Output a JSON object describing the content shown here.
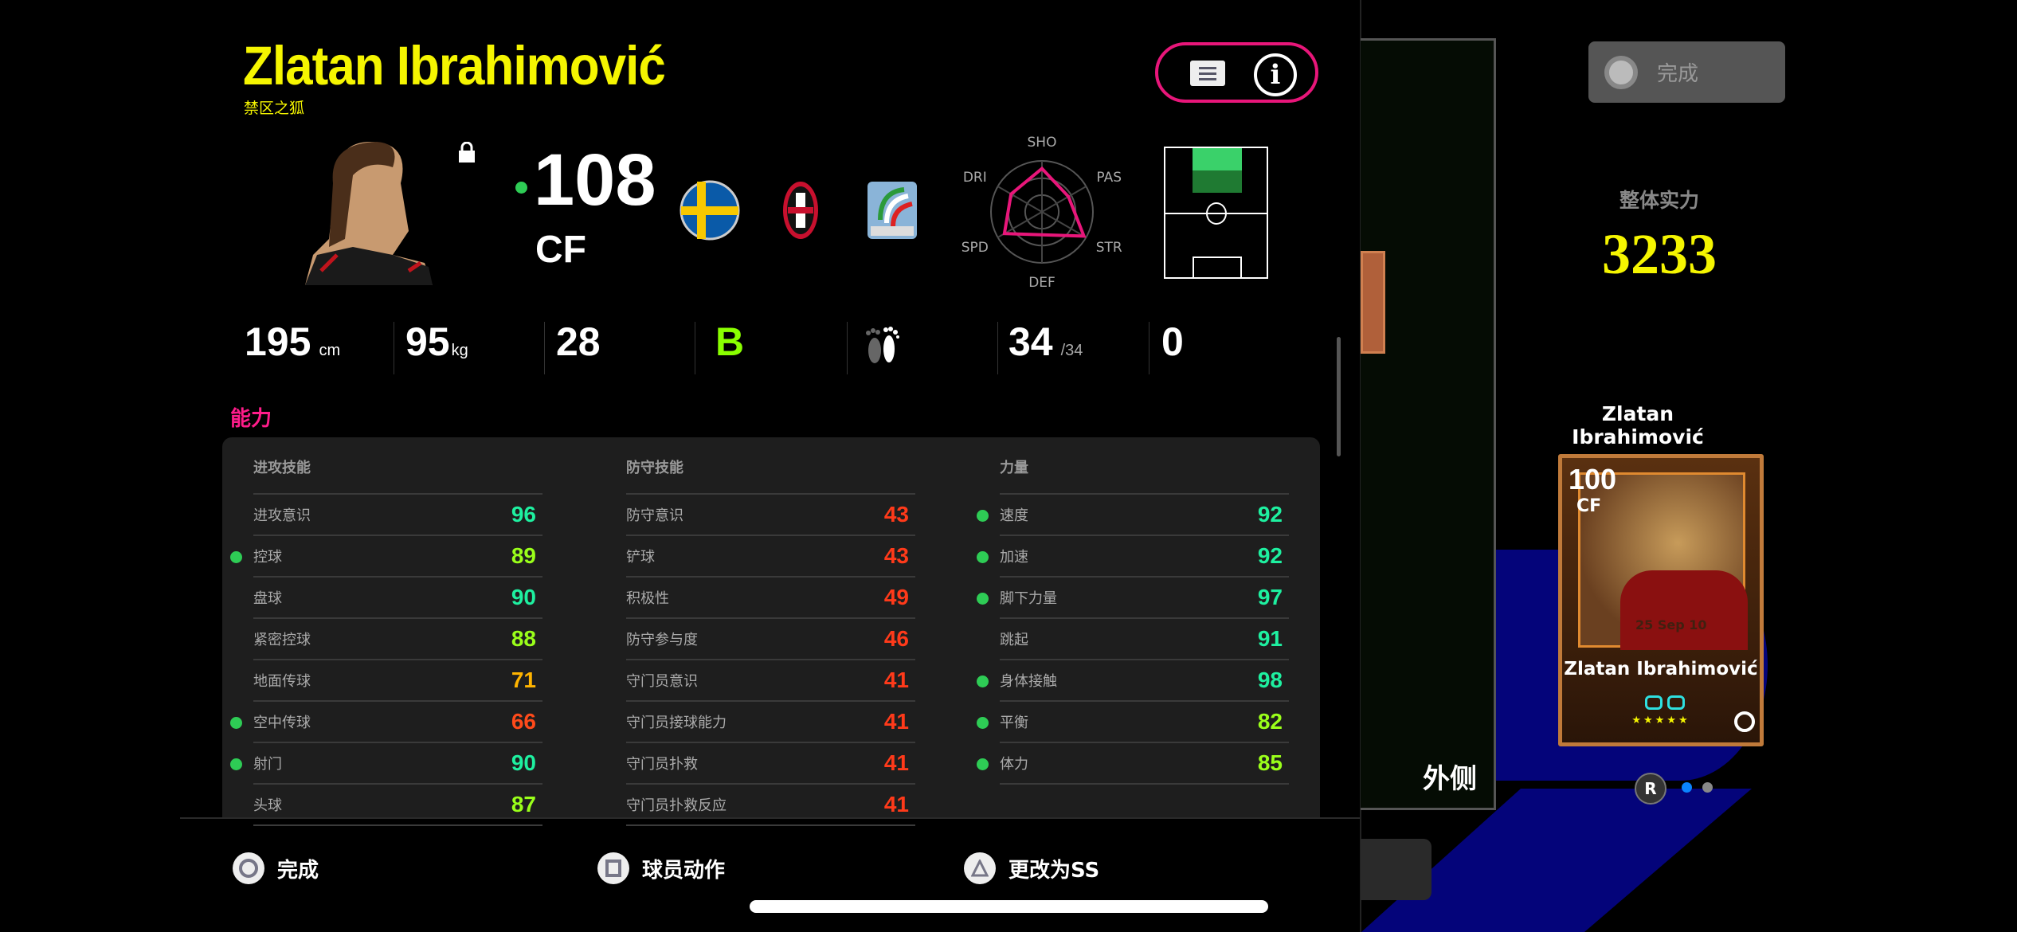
{
  "player": {
    "name": "Zlatan Ibrahimović",
    "nickname": "禁区之狐",
    "overall": "108",
    "position": "CF",
    "locked": true,
    "badges": [
      "sweden-flag",
      "ac-milan-crest",
      "serie-a-logo"
    ]
  },
  "radar": {
    "labels": [
      "SHO",
      "PAS",
      "STR",
      "DEF",
      "SPD",
      "DRI"
    ],
    "values": [
      0.85,
      0.6,
      0.95,
      0.45,
      0.85,
      0.7
    ],
    "color": "#e8167a"
  },
  "summary": [
    {
      "value": "195",
      "unit": "cm"
    },
    {
      "value": "95",
      "unit": "kg"
    },
    {
      "value": "28",
      "unit": ""
    },
    {
      "value": "B",
      "unit": "",
      "color": "#8aff00"
    },
    {
      "icon": "feet-icon"
    },
    {
      "value": "34",
      "unit": "/34"
    },
    {
      "value": "0",
      "unit": ""
    }
  ],
  "section_title": "能力",
  "columns": [
    {
      "header": "进攻技能",
      "rows": [
        {
          "label": "进攻意识",
          "value": "96",
          "color": "#1ef0a0",
          "dot": false
        },
        {
          "label": "控球",
          "value": "89",
          "color": "#9aff1a",
          "dot": true
        },
        {
          "label": "盘球",
          "value": "90",
          "color": "#1ef0a0",
          "dot": false
        },
        {
          "label": "紧密控球",
          "value": "88",
          "color": "#9aff1a",
          "dot": false
        },
        {
          "label": "地面传球",
          "value": "71",
          "color": "#ffb400",
          "dot": false
        },
        {
          "label": "空中传球",
          "value": "66",
          "color": "#ff4a1a",
          "dot": true
        },
        {
          "label": "射门",
          "value": "90",
          "color": "#1ef0a0",
          "dot": true
        },
        {
          "label": "头球",
          "value": "87",
          "color": "#9aff1a",
          "dot": false
        }
      ]
    },
    {
      "header": "防守技能",
      "rows": [
        {
          "label": "防守意识",
          "value": "43",
          "color": "#ff3a1a",
          "dot": false
        },
        {
          "label": "铲球",
          "value": "43",
          "color": "#ff3a1a",
          "dot": false
        },
        {
          "label": "积极性",
          "value": "49",
          "color": "#ff3a1a",
          "dot": false
        },
        {
          "label": "防守参与度",
          "value": "46",
          "color": "#ff3a1a",
          "dot": false
        },
        {
          "label": "守门员意识",
          "value": "41",
          "color": "#ff3a1a",
          "dot": false
        },
        {
          "label": "守门员接球能力",
          "value": "41",
          "color": "#ff3a1a",
          "dot": false
        },
        {
          "label": "守门员扑救",
          "value": "41",
          "color": "#ff3a1a",
          "dot": false
        },
        {
          "label": "守门员扑救反应",
          "value": "41",
          "color": "#ff3a1a",
          "dot": false
        }
      ]
    },
    {
      "header": "力量",
      "rows": [
        {
          "label": "速度",
          "value": "92",
          "color": "#1ef0a0",
          "dot": true
        },
        {
          "label": "加速",
          "value": "92",
          "color": "#1ef0a0",
          "dot": true
        },
        {
          "label": "脚下力量",
          "value": "97",
          "color": "#1ef0a0",
          "dot": true
        },
        {
          "label": "跳起",
          "value": "91",
          "color": "#1ef0a0",
          "dot": false
        },
        {
          "label": "身体接触",
          "value": "98",
          "color": "#1ef0a0",
          "dot": true
        },
        {
          "label": "平衡",
          "value": "82",
          "color": "#9aff1a",
          "dot": true
        },
        {
          "label": "体力",
          "value": "85",
          "color": "#9aff1a",
          "dot": true
        }
      ]
    }
  ],
  "footer": {
    "done": "完成",
    "player_action": "球员动作",
    "change": "更改为SS"
  },
  "right": {
    "done": "完成",
    "overall_label": "整体实力",
    "overall_value": "3233",
    "side_label": "外侧",
    "card_name": "Zlatan Ibrahimović",
    "card": {
      "overall": "100",
      "position": "CF",
      "name": "Zlatan Ibrahimović",
      "date": "25 Sep 10",
      "stars": "★★★★★"
    },
    "page_button": "R",
    "pages": 2,
    "current_page": 1,
    "accent": "#0a84ff"
  }
}
